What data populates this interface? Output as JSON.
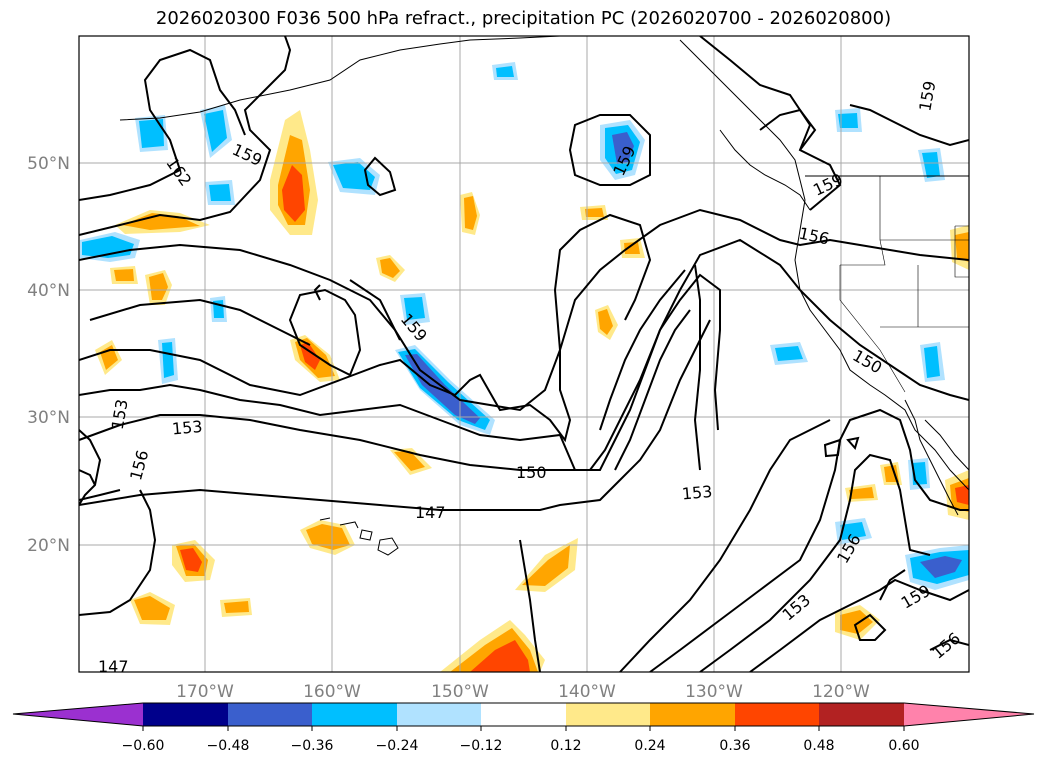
{
  "title": "2026020300 F036 500 hPa refract., precipitation PC (2026020700 - 2026020800)",
  "map": {
    "lat_labels": [
      "50°N",
      "40°N",
      "30°N",
      "20°N"
    ],
    "lon_labels": [
      "170°W",
      "160°W",
      "150°W",
      "140°W",
      "130°W",
      "120°W"
    ],
    "contour_labels": [
      "162",
      "159",
      "159",
      "159",
      "159",
      "156",
      "150",
      "159",
      "153",
      "153",
      "156",
      "150",
      "147",
      "153",
      "153",
      "156",
      "159",
      "156",
      "147"
    ],
    "contour_color": "#000000",
    "grid": true
  },
  "colorbar": {
    "tick_labels": [
      "−0.60",
      "−0.48",
      "−0.36",
      "−0.24",
      "−0.12",
      "0.12",
      "0.24",
      "0.36",
      "0.48",
      "0.60"
    ],
    "colors": [
      "#9b30d0",
      "#00008b",
      "#3a5fcd",
      "#00bfff",
      "#b0e2ff",
      "#ffffff",
      "#ffe98a",
      "#ffa500",
      "#ff4500",
      "#b22222",
      "#ff82ab"
    ]
  }
}
